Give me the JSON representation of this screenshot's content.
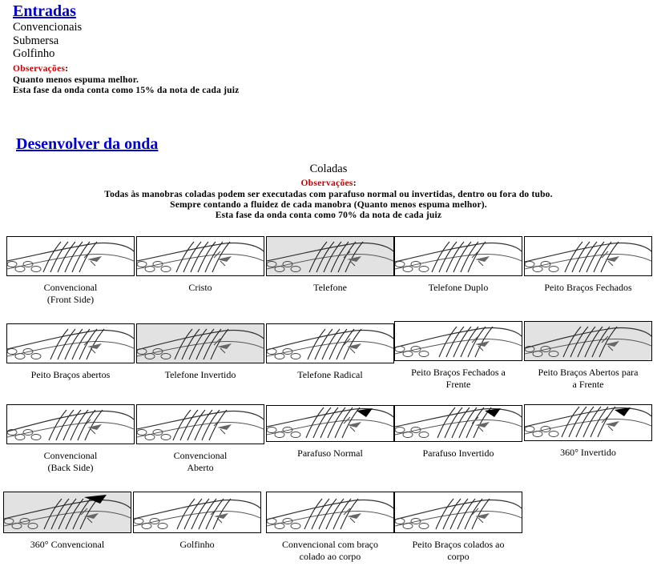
{
  "entradas": {
    "title": "Entradas",
    "items": [
      "Convencionais",
      "Submersa",
      "Golfinho"
    ],
    "obs_label": "Observações",
    "notes": [
      "Quanto menos espuma melhor.",
      "Esta fase da onda conta como 15% da nota de cada juiz"
    ]
  },
  "desenvolver": {
    "title": "Desenvolver da onda",
    "subtitle": "Coladas",
    "obs_label": "Observações",
    "notes": [
      "Todas às manobras coladas podem ser executadas com parafuso normal ou invertidas, dentro ou fora do tubo.",
      "Sempre contando a fluidez de cada manobra (Quanto menos espuma melhor).",
      "Esta fase da onda conta como 70% da nota de cada juiz"
    ]
  },
  "maneuvers": [
    {
      "caption": "Convencional\n(Front Side)",
      "gray": false
    },
    {
      "caption": "Cristo",
      "gray": false
    },
    {
      "caption": "Telefone",
      "gray": true
    },
    {
      "caption": "Telefone Duplo",
      "gray": false
    },
    {
      "caption": "Peito Braços Fechados",
      "gray": false
    },
    {
      "caption": "Peito Braços abertos",
      "gray": false
    },
    {
      "caption": "Telefone Invertido",
      "gray": true
    },
    {
      "caption": "Telefone Radical",
      "gray": false
    },
    {
      "caption": "Peito Braços Fechados a\nFrente",
      "gray": false
    },
    {
      "caption": "Peito Braços Abertos para\na Frente",
      "gray": true
    },
    {
      "caption": "Convencional\n(Back Side)",
      "gray": false
    },
    {
      "caption": "Convencional\nAberto",
      "gray": false
    },
    {
      "caption": "Parafuso Normal",
      "gray": false
    },
    {
      "caption": "Parafuso Invertido",
      "gray": false
    },
    {
      "caption": "360°  Invertido",
      "gray": false
    },
    {
      "caption": "360° Convencional",
      "gray": true
    },
    {
      "caption": "Golfinho",
      "gray": false
    },
    {
      "caption": "Convencional com braço\ncolado ao corpo",
      "gray": false
    },
    {
      "caption": "Peito Braços colados ao\ncorpo",
      "gray": false
    }
  ]
}
